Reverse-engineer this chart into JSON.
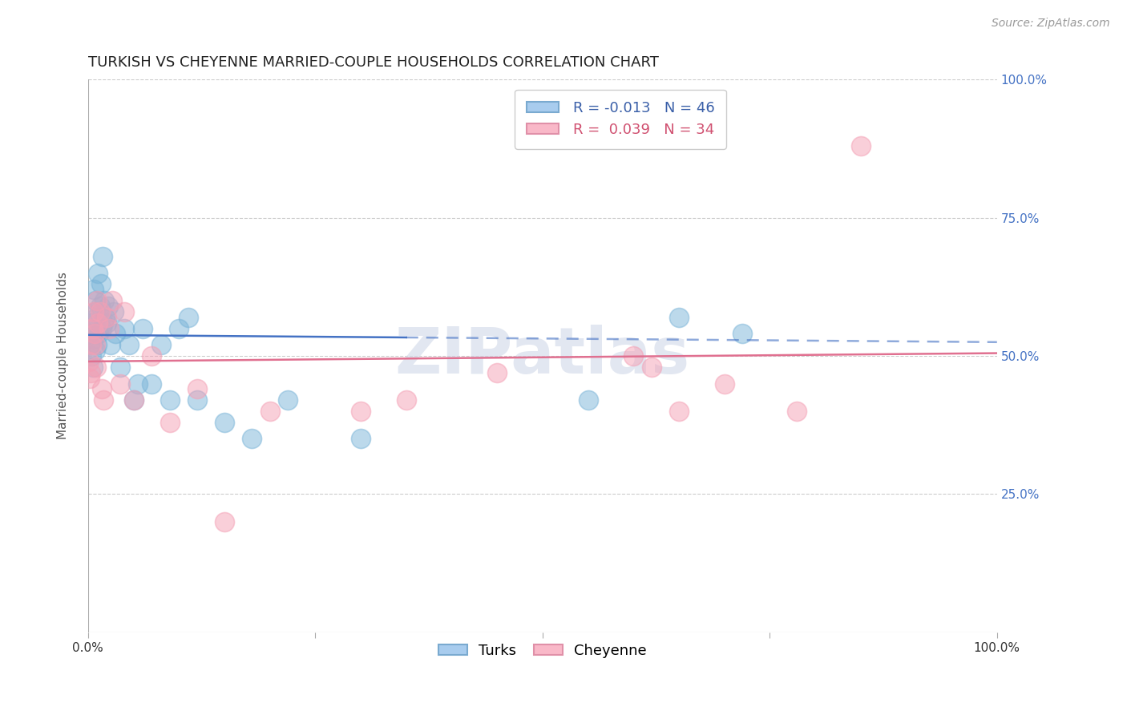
{
  "title": "TURKISH VS CHEYENNE MARRIED-COUPLE HOUSEHOLDS CORRELATION CHART",
  "source": "Source: ZipAtlas.com",
  "ylabel": "Married-couple Households",
  "xlim": [
    0,
    1.0
  ],
  "ylim": [
    0,
    1.0
  ],
  "turks_R": -0.013,
  "turks_N": 46,
  "cheyenne_R": 0.039,
  "cheyenne_N": 34,
  "turks_color": "#7ab4d8",
  "cheyenne_color": "#f4a0b5",
  "turks_line_color": "#4472c4",
  "cheyenne_line_color": "#e07090",
  "background_color": "#ffffff",
  "grid_color": "#cccccc",
  "turks_x": [
    0.001,
    0.002,
    0.003,
    0.004,
    0.005,
    0.005,
    0.006,
    0.006,
    0.007,
    0.008,
    0.008,
    0.009,
    0.01,
    0.011,
    0.012,
    0.013,
    0.014,
    0.015,
    0.016,
    0.017,
    0.018,
    0.019,
    0.02,
    0.022,
    0.025,
    0.028,
    0.03,
    0.035,
    0.04,
    0.045,
    0.05,
    0.055,
    0.06,
    0.07,
    0.08,
    0.09,
    0.1,
    0.11,
    0.12,
    0.15,
    0.18,
    0.22,
    0.3,
    0.55,
    0.65,
    0.72
  ],
  "turks_y": [
    0.54,
    0.52,
    0.56,
    0.5,
    0.48,
    0.53,
    0.55,
    0.62,
    0.58,
    0.51,
    0.6,
    0.57,
    0.52,
    0.65,
    0.54,
    0.59,
    0.63,
    0.55,
    0.68,
    0.56,
    0.6,
    0.57,
    0.56,
    0.59,
    0.52,
    0.58,
    0.54,
    0.48,
    0.55,
    0.52,
    0.42,
    0.45,
    0.55,
    0.45,
    0.52,
    0.42,
    0.55,
    0.57,
    0.42,
    0.38,
    0.35,
    0.42,
    0.35,
    0.42,
    0.57,
    0.54
  ],
  "cheyenne_x": [
    0.001,
    0.002,
    0.003,
    0.004,
    0.005,
    0.006,
    0.007,
    0.008,
    0.009,
    0.01,
    0.011,
    0.013,
    0.015,
    0.017,
    0.02,
    0.023,
    0.027,
    0.035,
    0.04,
    0.05,
    0.07,
    0.09,
    0.12,
    0.15,
    0.2,
    0.3,
    0.35,
    0.45,
    0.6,
    0.62,
    0.65,
    0.7,
    0.78,
    0.85
  ],
  "cheyenne_y": [
    0.49,
    0.46,
    0.47,
    0.52,
    0.55,
    0.58,
    0.54,
    0.52,
    0.48,
    0.6,
    0.56,
    0.58,
    0.44,
    0.42,
    0.57,
    0.55,
    0.6,
    0.45,
    0.58,
    0.42,
    0.5,
    0.38,
    0.44,
    0.2,
    0.4,
    0.4,
    0.42,
    0.47,
    0.5,
    0.48,
    0.4,
    0.45,
    0.4,
    0.88
  ],
  "watermark": "ZIPatlas",
  "title_fontsize": 13,
  "axis_label_fontsize": 11,
  "tick_fontsize": 11,
  "legend_fontsize": 13
}
